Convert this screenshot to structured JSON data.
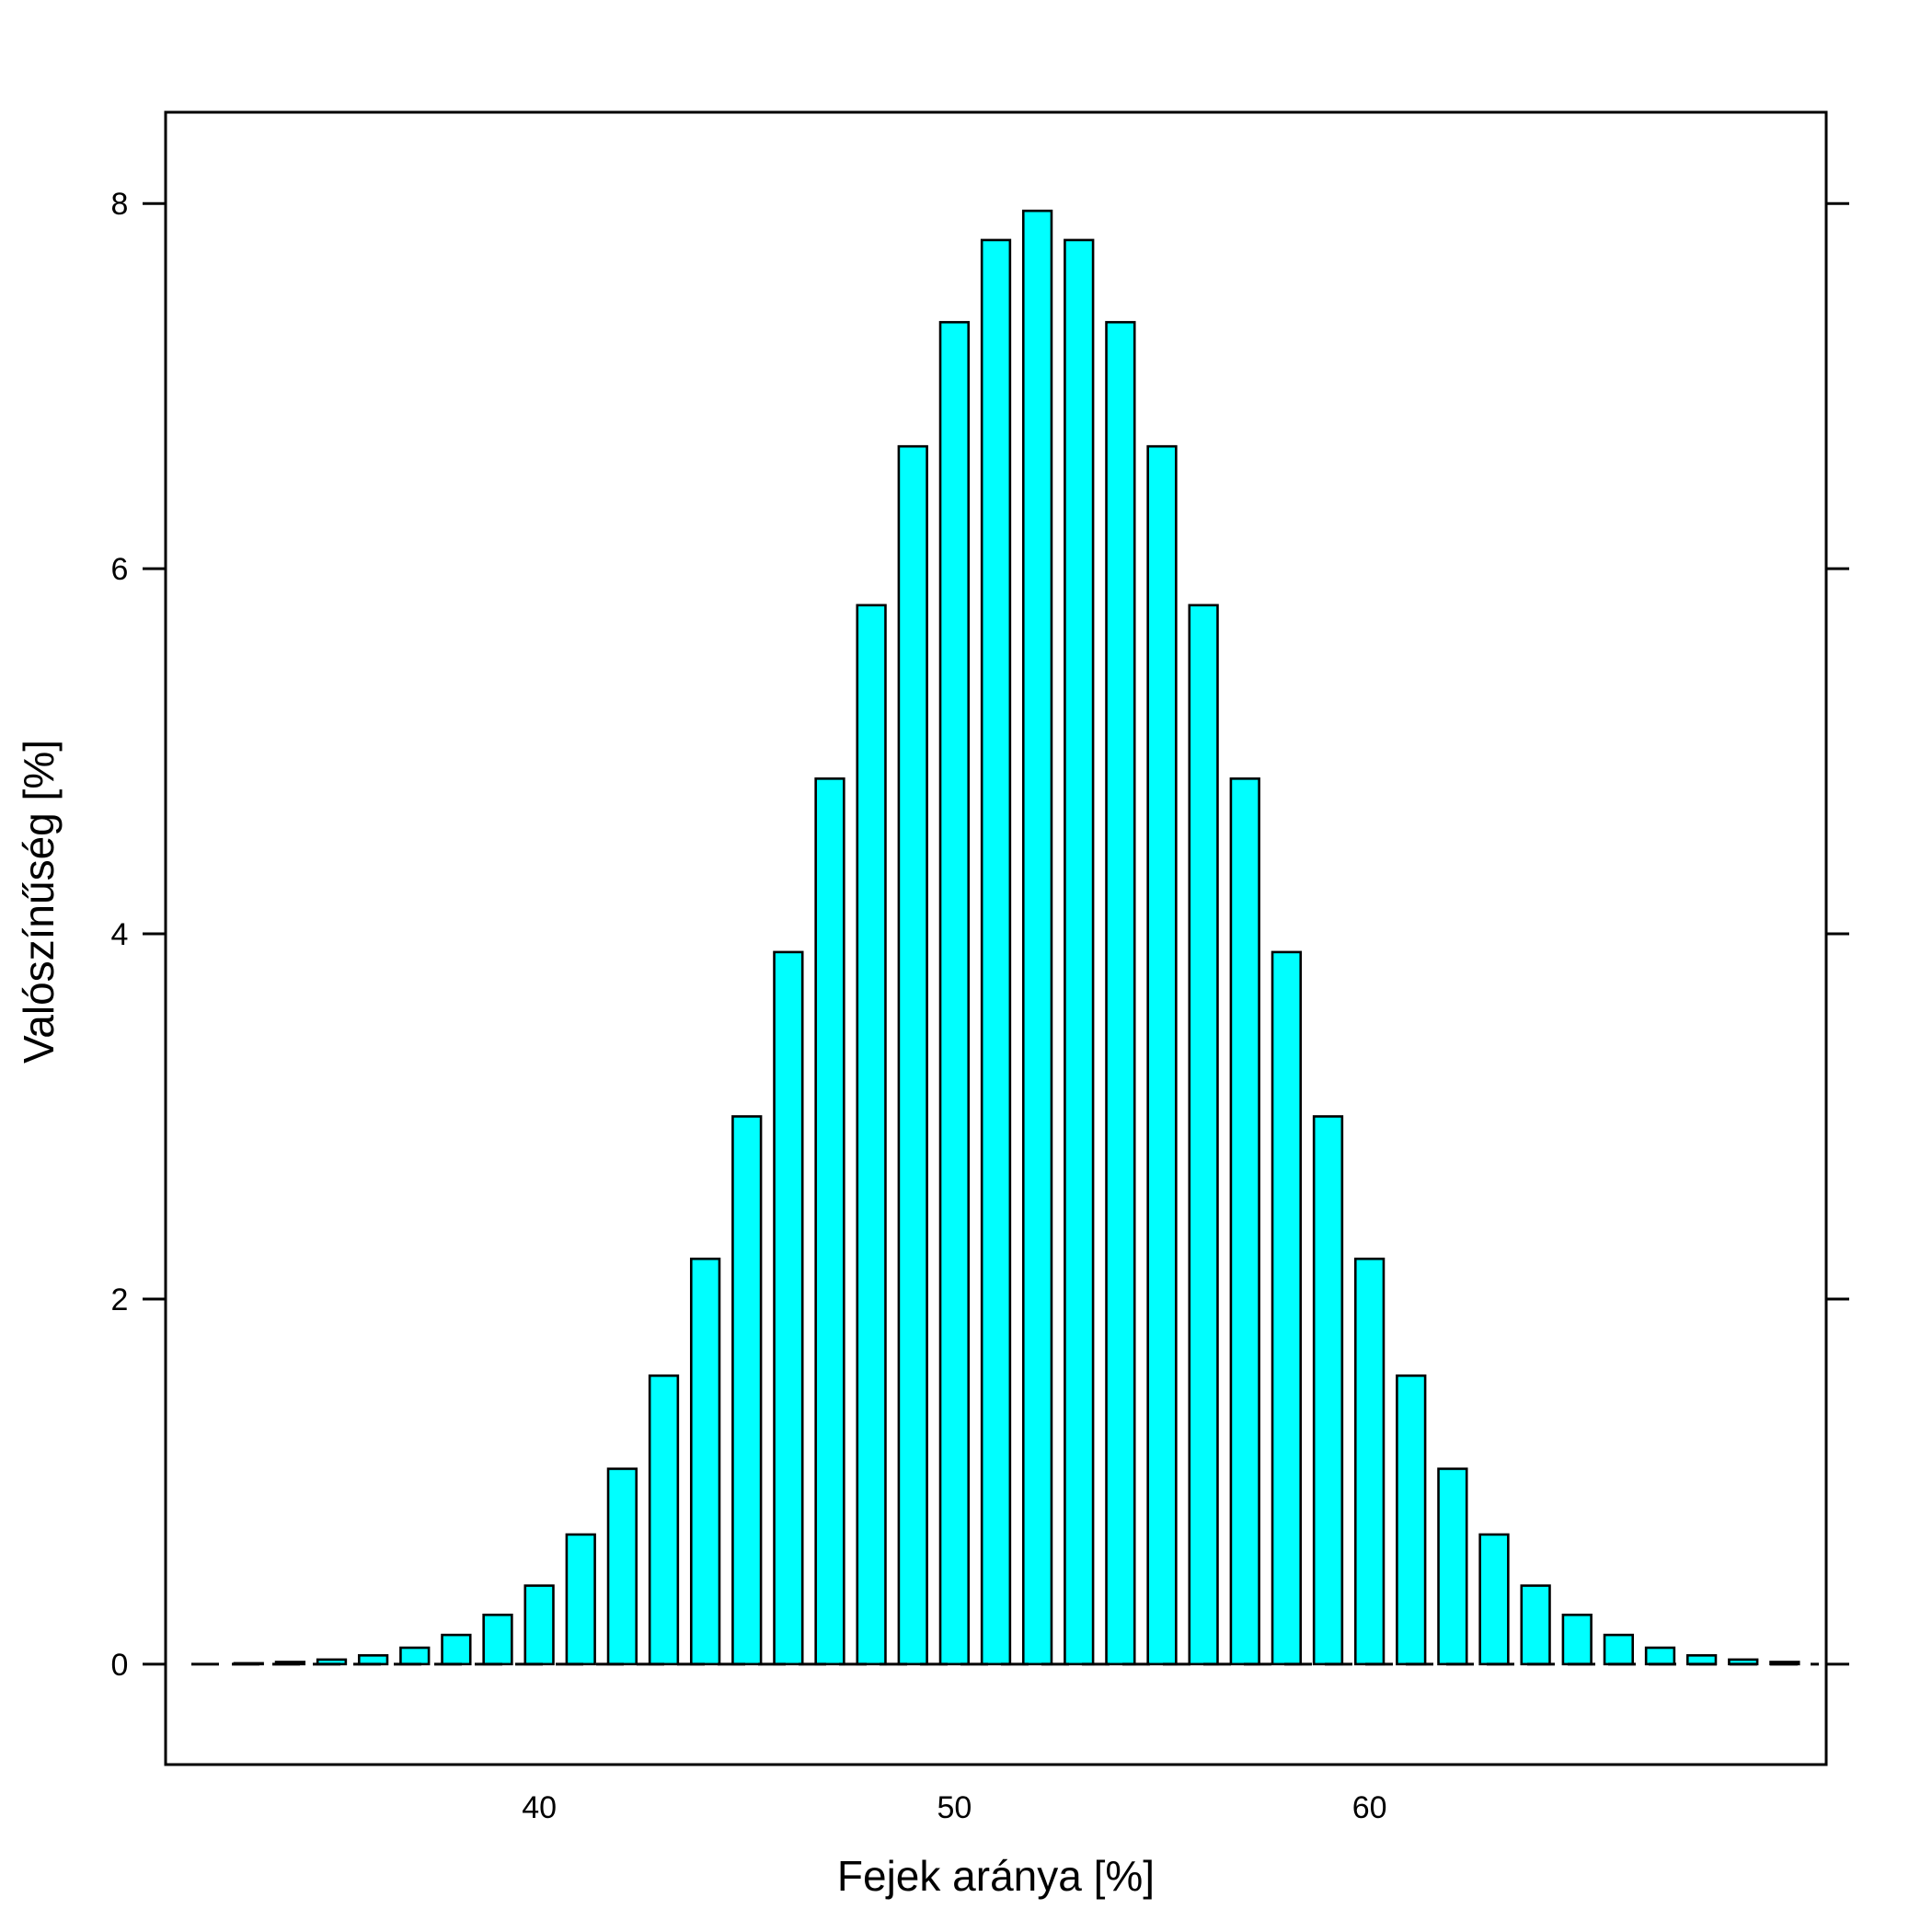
{
  "chart_data": {
    "type": "bar",
    "title": "",
    "xlabel": "Fejek aránya [%]",
    "ylabel": "Valószínűség [%]",
    "xlim": [
      31,
      71
    ],
    "ylim": [
      -0.55,
      8.5
    ],
    "xticks": [
      40,
      50,
      60
    ],
    "yticks": [
      0,
      2,
      4,
      6,
      8
    ],
    "bar_color": "#00FFFF",
    "bar_edge_color": "#000000",
    "baseline": 0,
    "baseline_style": "dashed",
    "grid": false,
    "x": [
      32,
      33,
      34,
      35,
      36,
      37,
      38,
      39,
      40,
      41,
      42,
      43,
      44,
      45,
      46,
      47,
      48,
      49,
      50,
      51,
      52,
      53,
      54,
      55,
      56,
      57,
      58,
      59,
      60,
      61,
      62,
      63,
      64,
      65,
      66,
      67,
      68,
      69,
      70
    ],
    "values": [
      0.0,
      0.005,
      0.012,
      0.025,
      0.048,
      0.09,
      0.16,
      0.27,
      0.43,
      0.71,
      1.07,
      1.58,
      2.22,
      3.0,
      3.9,
      4.85,
      5.8,
      6.67,
      7.35,
      7.8,
      7.96,
      7.8,
      7.35,
      6.67,
      5.8,
      4.85,
      3.9,
      3.0,
      2.22,
      1.58,
      1.07,
      0.71,
      0.43,
      0.27,
      0.16,
      0.09,
      0.048,
      0.025,
      0.012
    ]
  }
}
